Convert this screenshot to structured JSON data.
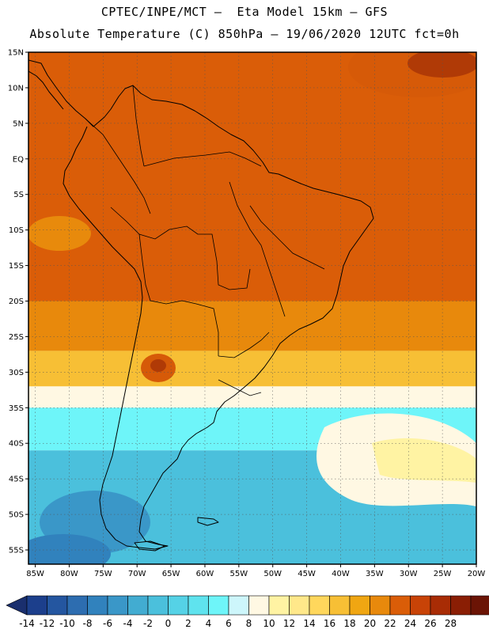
{
  "header": {
    "title_line1": "CPTEC/INPE/MCT –  Eta Model 15km – GFS",
    "title_line2": "Absolute Temperature (C) 850hPa – 19/06/2020 12UTC fct=0h"
  },
  "map": {
    "lat_labels": [
      "15N",
      "10N",
      "5N",
      "EQ",
      "5S",
      "10S",
      "15S",
      "20S",
      "25S",
      "30S",
      "35S",
      "40S",
      "45S",
      "50S",
      "55S"
    ],
    "lon_labels": [
      "85W",
      "80W",
      "75W",
      "70W",
      "65W",
      "60W",
      "55W",
      "50W",
      "45W",
      "40W",
      "35W",
      "30W",
      "25W",
      "20W"
    ],
    "lat_range": [
      15,
      -57
    ],
    "lon_range": [
      -86,
      -20
    ],
    "field_bands": [
      {
        "lat_from": 16,
        "lat_to": -20,
        "temp": 20
      },
      {
        "lat_from": -20,
        "lat_to": -27,
        "temp": 18
      },
      {
        "lat_from": -27,
        "lat_to": -32,
        "temp": 15
      },
      {
        "lat_from": -32,
        "lat_to": -35,
        "temp": 7
      },
      {
        "lat_from": -35,
        "lat_to": -41,
        "temp": 3
      },
      {
        "lat_from": -41,
        "lat_to": -58,
        "temp": -3
      }
    ]
  },
  "colorbar": {
    "labels": [
      "-14",
      "-12",
      "-10",
      "-8",
      "-6",
      "-4",
      "-2",
      "0",
      "2",
      "4",
      "6",
      "8",
      "10",
      "12",
      "14",
      "16",
      "18",
      "20",
      "22",
      "24",
      "26",
      "28"
    ],
    "colors": [
      "#1c3f8c",
      "#2456a0",
      "#2d6db0",
      "#3182bd",
      "#3a97c8",
      "#42acd1",
      "#4bc0dc",
      "#55d2e6",
      "#5fe3ee",
      "#6ef5f9",
      "#cdf6fb",
      "#fff8e3",
      "#fff3a3",
      "#ffe88a",
      "#ffd75c",
      "#f7bf35",
      "#f0a612",
      "#e8890c",
      "#da5d08",
      "#c84307",
      "#a82c05",
      "#8a1e04",
      "#6b1405"
    ],
    "low_arrow_color": "#1a2f6e",
    "high_arrow_color": "#6b0d2a"
  }
}
